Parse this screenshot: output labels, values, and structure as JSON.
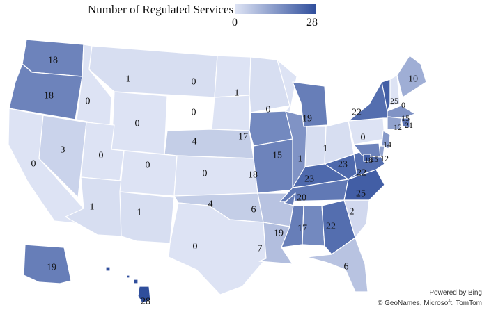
{
  "legend": {
    "title": "Number of Regulated Services",
    "min_label": "0",
    "max_label": "28",
    "min_value": 0,
    "max_value": 28,
    "color_min": "#dde3f4",
    "color_max": "#2f4e9c"
  },
  "attribution": {
    "line1": "Powered by Bing",
    "line2": "© GeoNames, Microsoft, TomTom"
  },
  "states": [
    {
      "id": "WA",
      "value": 18
    },
    {
      "id": "OR",
      "value": 18
    },
    {
      "id": "CA",
      "value": 0
    },
    {
      "id": "ID",
      "value": 0
    },
    {
      "id": "NV",
      "value": 3
    },
    {
      "id": "MT",
      "value": 1
    },
    {
      "id": "WY",
      "value": 0
    },
    {
      "id": "UT",
      "value": 0
    },
    {
      "id": "AZ",
      "value": 1
    },
    {
      "id": "CO",
      "value": 0
    },
    {
      "id": "NM",
      "value": 1
    },
    {
      "id": "ND",
      "value": 0
    },
    {
      "id": "SD",
      "value": 0
    },
    {
      "id": "NE",
      "value": 4
    },
    {
      "id": "KS",
      "value": 0
    },
    {
      "id": "OK",
      "value": 4
    },
    {
      "id": "TX",
      "value": 0
    },
    {
      "id": "MN",
      "value": 1
    },
    {
      "id": "IA",
      "value": 17
    },
    {
      "id": "MO",
      "value": 18
    },
    {
      "id": "AR",
      "value": 6
    },
    {
      "id": "LA",
      "value": 7
    },
    {
      "id": "WI",
      "value": 0
    },
    {
      "id": "IL",
      "value": 15
    },
    {
      "id": "MI",
      "value": 19
    },
    {
      "id": "IN",
      "value": 1
    },
    {
      "id": "OH",
      "value": 1
    },
    {
      "id": "KY",
      "value": 23
    },
    {
      "id": "TN",
      "value": 20
    },
    {
      "id": "MS",
      "value": 19
    },
    {
      "id": "AL",
      "value": 17
    },
    {
      "id": "GA",
      "value": 22
    },
    {
      "id": "FL",
      "value": 6
    },
    {
      "id": "SC",
      "value": 2
    },
    {
      "id": "NC",
      "value": 25
    },
    {
      "id": "VA",
      "value": 22
    },
    {
      "id": "WV",
      "value": 23
    },
    {
      "id": "PA",
      "value": 0
    },
    {
      "id": "NY",
      "value": 22
    },
    {
      "id": "VT",
      "value": 25
    },
    {
      "id": "NH",
      "value": 0
    },
    {
      "id": "ME",
      "value": 10
    },
    {
      "id": "MA",
      "value": 15
    },
    {
      "id": "RI",
      "value": 21
    },
    {
      "id": "CT",
      "value": 12
    },
    {
      "id": "NJ",
      "value": 14
    },
    {
      "id": "DE",
      "value": 12
    },
    {
      "id": "MD",
      "value": 18
    },
    {
      "id": "DC",
      "value": 25
    },
    {
      "id": "AK",
      "value": 19
    },
    {
      "id": "HI",
      "value": 28
    }
  ]
}
